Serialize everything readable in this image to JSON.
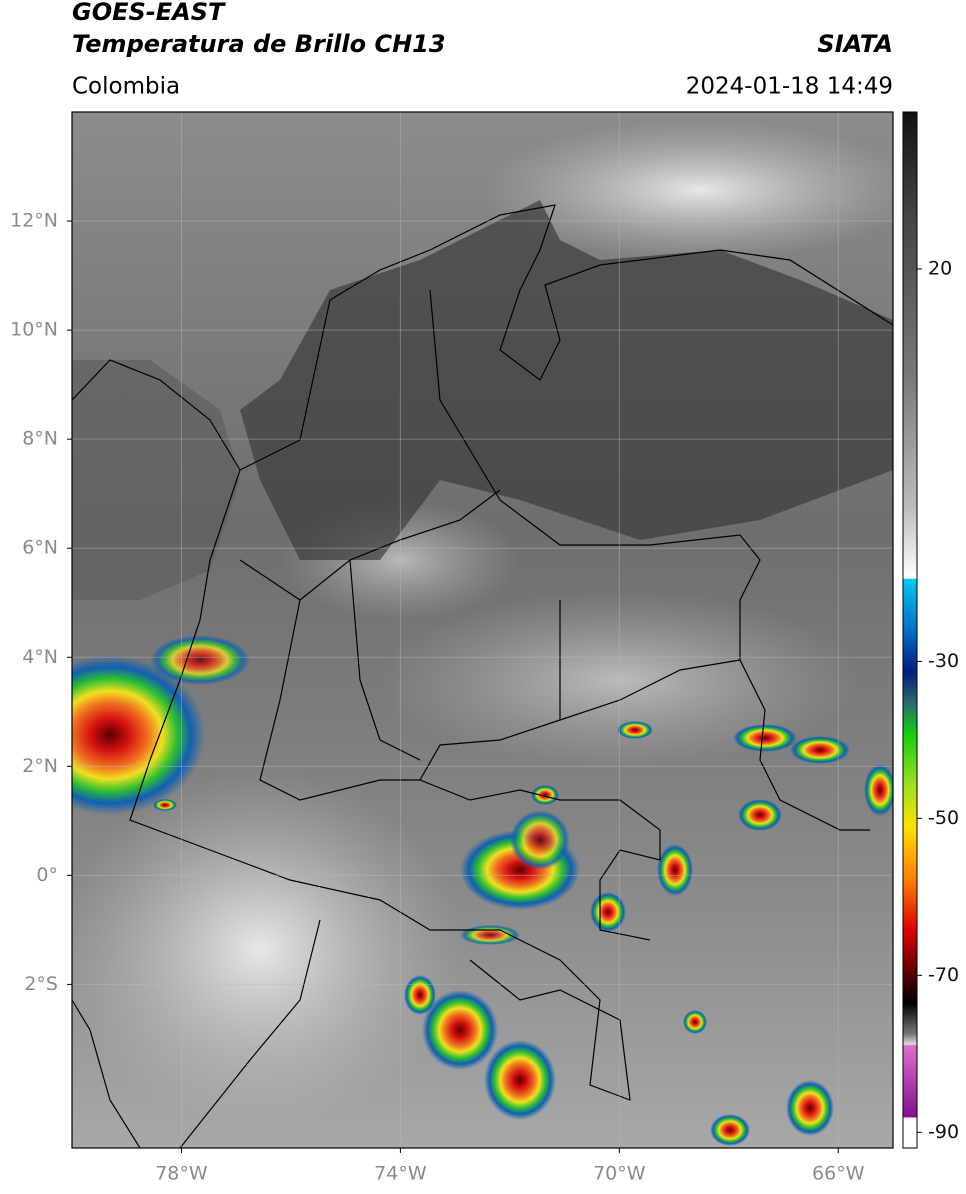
{
  "header": {
    "title": "GOES-EAST",
    "subtitle": "Temperatura de Brillo CH13",
    "source": "SIATA",
    "region": "Colombia",
    "datetime": "2024-01-18 14:49"
  },
  "map": {
    "xlim": [
      -80,
      -65
    ],
    "ylim": [
      -5,
      14
    ],
    "xticks": [
      {
        "value": -78,
        "label": "78°W"
      },
      {
        "value": -74,
        "label": "74°W"
      },
      {
        "value": -70,
        "label": "70°W"
      },
      {
        "value": -66,
        "label": "66°W"
      }
    ],
    "yticks": [
      {
        "value": 12,
        "label": "12°N"
      },
      {
        "value": 10,
        "label": "10°N"
      },
      {
        "value": 8,
        "label": "8°N"
      },
      {
        "value": 6,
        "label": "6°N"
      },
      {
        "value": 4,
        "label": "4°N"
      },
      {
        "value": 2,
        "label": "2°N"
      },
      {
        "value": 0,
        "label": "0°"
      },
      {
        "value": -2,
        "label": "2°S"
      }
    ],
    "grid": true
  },
  "colorbar": {
    "range": [
      -92,
      40
    ],
    "ticks": [
      20,
      -30,
      -50,
      -70,
      -90
    ]
  }
}
